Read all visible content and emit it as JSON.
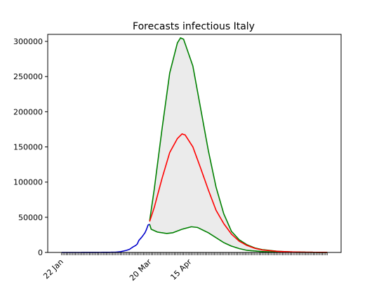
{
  "chart_data": {
    "type": "line",
    "title": "Forecasts infectious Italy",
    "xlabel": "",
    "ylabel": "",
    "x_tick_labels": [
      {
        "day": 0,
        "label": "22 Jan"
      },
      {
        "day": 57,
        "label": "20 Mar"
      },
      {
        "day": 83,
        "label": "15 Apr"
      }
    ],
    "x_ticks": {
      "start_day": 0,
      "end_day": 172,
      "step_days": 1
    },
    "xlim_days": [
      -9,
      181
    ],
    "ylim": [
      0,
      310000
    ],
    "y_ticks": [
      0,
      50000,
      100000,
      150000,
      200000,
      250000,
      300000
    ],
    "grid": false,
    "legend": "none",
    "observed": {
      "color": "#0000cc",
      "points": [
        [
          0,
          0
        ],
        [
          10,
          0
        ],
        [
          20,
          50
        ],
        [
          30,
          200
        ],
        [
          35,
          400
        ],
        [
          38,
          1000
        ],
        [
          40,
          2000
        ],
        [
          42,
          3000
        ],
        [
          44,
          4500
        ],
        [
          46,
          7500
        ],
        [
          48,
          10000
        ],
        [
          49,
          12000
        ],
        [
          50,
          17000
        ],
        [
          52,
          22000
        ],
        [
          54,
          28000
        ],
        [
          55,
          33000
        ],
        [
          56,
          39000
        ],
        [
          57,
          40000
        ]
      ]
    },
    "forecast_central": {
      "color": "#ff0000",
      "points": [
        [
          57,
          44000
        ],
        [
          60,
          64000
        ],
        [
          65,
          105000
        ],
        [
          70,
          142000
        ],
        [
          75,
          162000
        ],
        [
          78,
          168500
        ],
        [
          80,
          167000
        ],
        [
          85,
          150000
        ],
        [
          90,
          120000
        ],
        [
          95,
          89000
        ],
        [
          100,
          60000
        ],
        [
          105,
          41000
        ],
        [
          110,
          26000
        ],
        [
          115,
          16000
        ],
        [
          120,
          10000
        ],
        [
          125,
          6000
        ],
        [
          130,
          3500
        ],
        [
          140,
          1500
        ],
        [
          150,
          700
        ],
        [
          160,
          300
        ],
        [
          172,
          150
        ]
      ]
    },
    "forecast_upper": {
      "color": "#008000",
      "points": [
        [
          57,
          45000
        ],
        [
          60,
          90000
        ],
        [
          65,
          175000
        ],
        [
          70,
          255000
        ],
        [
          75,
          298000
        ],
        [
          77,
          305000
        ],
        [
          79,
          303000
        ],
        [
          85,
          265000
        ],
        [
          90,
          205000
        ],
        [
          95,
          145000
        ],
        [
          100,
          93000
        ],
        [
          105,
          55000
        ],
        [
          110,
          30000
        ],
        [
          115,
          18000
        ],
        [
          120,
          11000
        ],
        [
          125,
          6500
        ],
        [
          130,
          4000
        ],
        [
          140,
          1600
        ],
        [
          150,
          700
        ],
        [
          160,
          300
        ],
        [
          172,
          150
        ]
      ]
    },
    "forecast_lower": {
      "color": "#008000",
      "points": [
        [
          57,
          40000
        ],
        [
          58,
          33000
        ],
        [
          62,
          29000
        ],
        [
          68,
          27000
        ],
        [
          72,
          28000
        ],
        [
          78,
          33000
        ],
        [
          84,
          36500
        ],
        [
          88,
          35500
        ],
        [
          95,
          28000
        ],
        [
          100,
          21000
        ],
        [
          105,
          14000
        ],
        [
          110,
          9000
        ],
        [
          115,
          5500
        ],
        [
          120,
          3000
        ],
        [
          130,
          1200
        ],
        [
          140,
          500
        ],
        [
          150,
          250
        ],
        [
          160,
          120
        ],
        [
          172,
          50
        ]
      ]
    },
    "band_fill": "#ebebeb"
  }
}
